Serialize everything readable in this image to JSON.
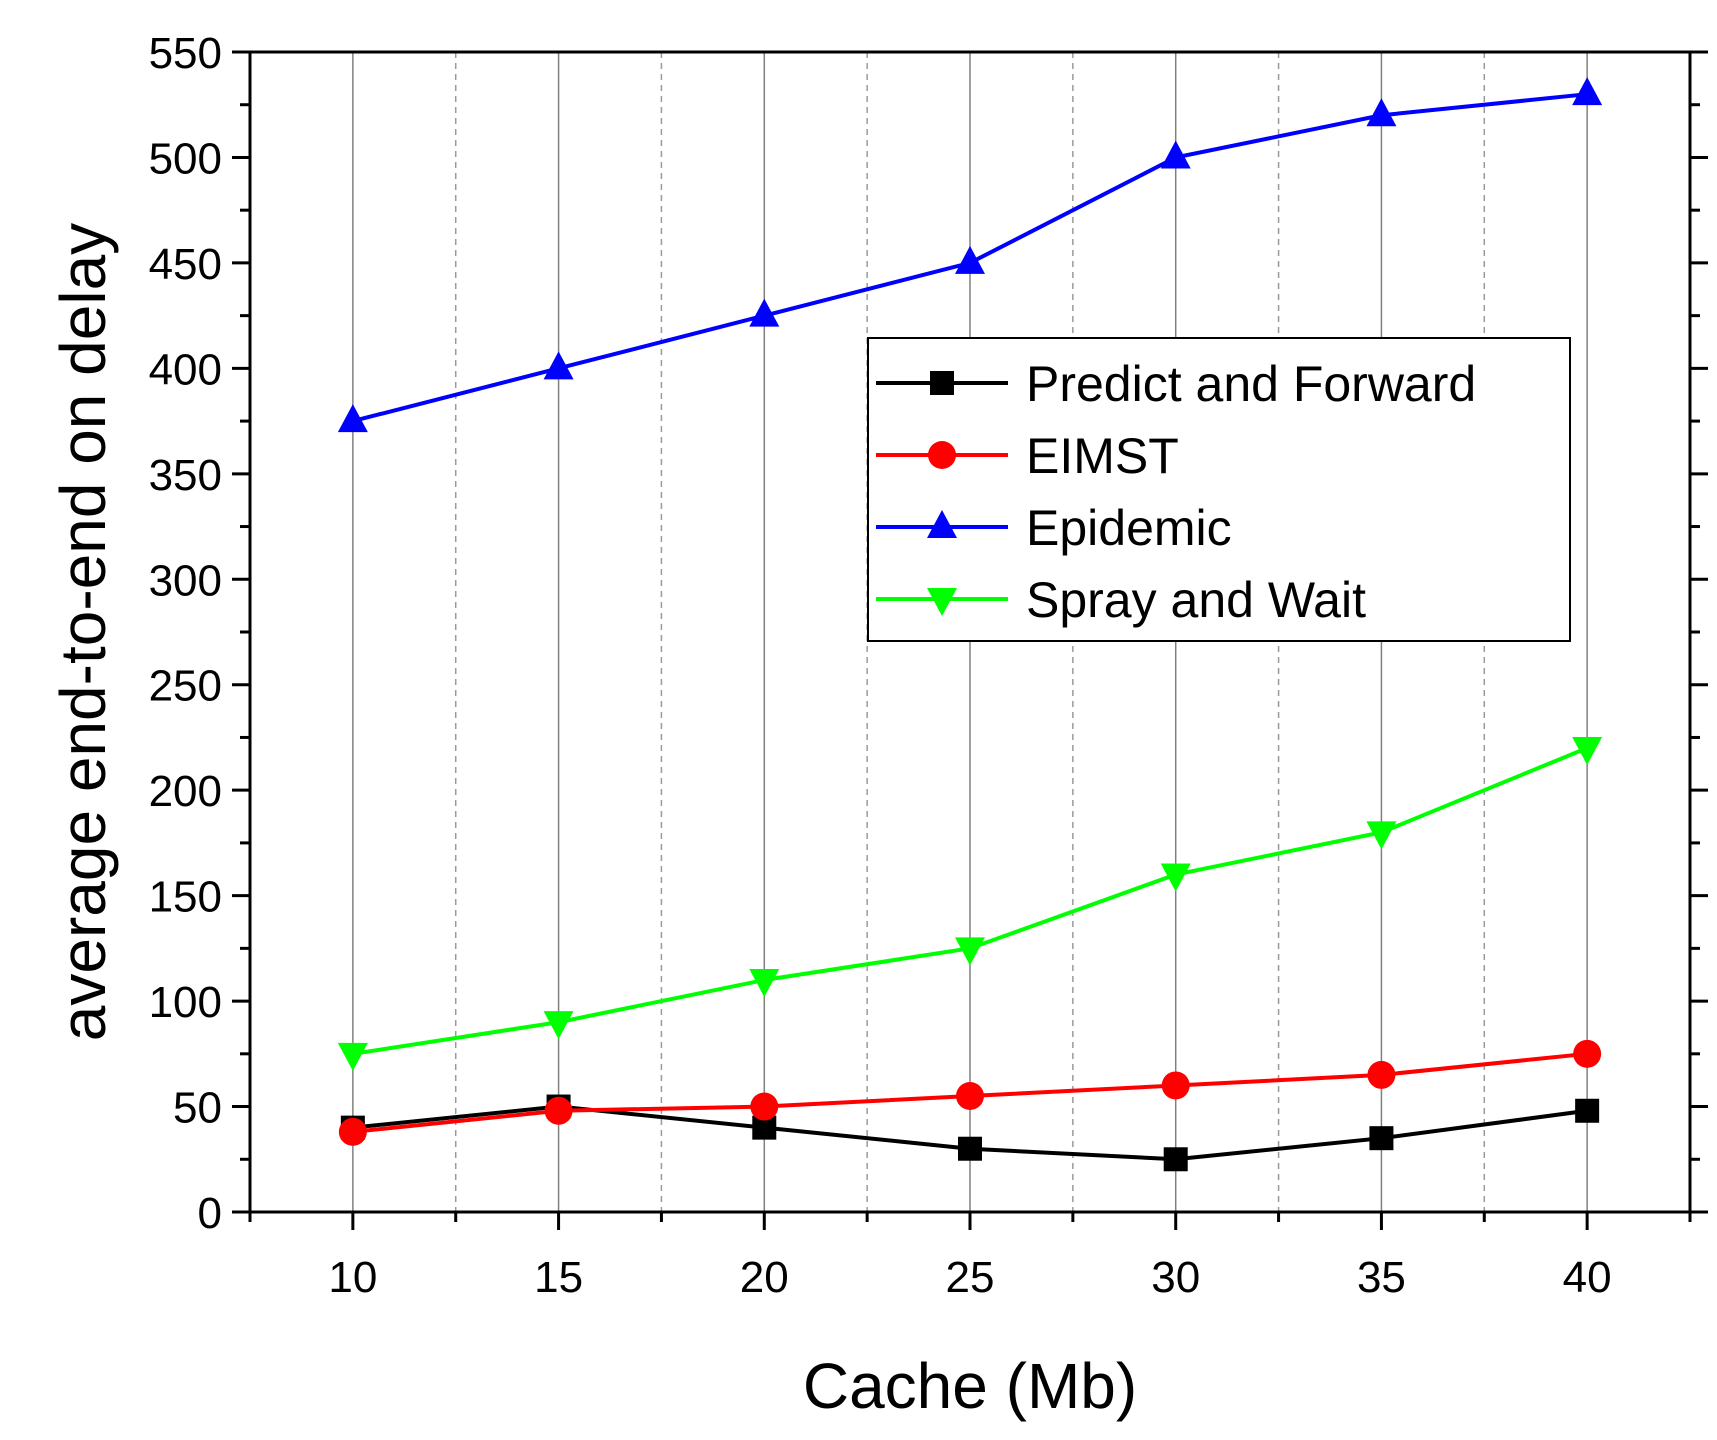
{
  "chart_data": {
    "type": "line",
    "title": "",
    "xlabel": "Cache (Mb)",
    "ylabel": "average end-to-end on delay",
    "x": [
      10,
      15,
      20,
      25,
      30,
      35,
      40
    ],
    "xlim": [
      7.5,
      42.5
    ],
    "ylim": [
      0,
      550
    ],
    "xticks": [
      10,
      15,
      20,
      25,
      30,
      35,
      40
    ],
    "yticks": [
      0,
      50,
      100,
      150,
      200,
      250,
      300,
      350,
      400,
      450,
      500,
      550
    ],
    "grid": "vertical",
    "legend_position": "top-right",
    "series": [
      {
        "name": "Predict and Forward",
        "color": "#000000",
        "marker": "square",
        "values": [
          40,
          50,
          40,
          30,
          25,
          35,
          48
        ]
      },
      {
        "name": "EIMST",
        "color": "#ff0000",
        "marker": "circle",
        "values": [
          38,
          48,
          50,
          55,
          60,
          65,
          75
        ]
      },
      {
        "name": "Epidemic",
        "color": "#0000ff",
        "marker": "triangle-up",
        "values": [
          375,
          400,
          425,
          450,
          500,
          520,
          530
        ]
      },
      {
        "name": "Spray and Wait",
        "color": "#00ff00",
        "marker": "triangle-down",
        "values": [
          75,
          90,
          110,
          125,
          160,
          180,
          220
        ]
      }
    ]
  }
}
